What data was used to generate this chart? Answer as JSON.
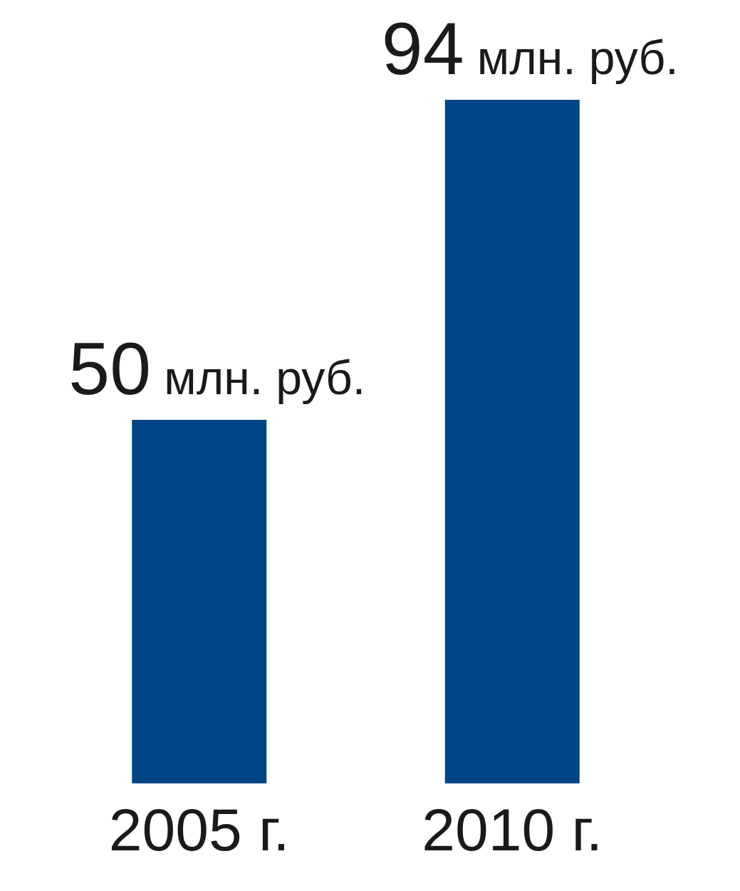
{
  "chart_data": {
    "type": "bar",
    "categories": [
      "2005 г.",
      "2010 г."
    ],
    "values": [
      50,
      94
    ],
    "color": "#004585",
    "value_labels": [
      "50 млн. руб.",
      "94 млн. руб."
    ],
    "grid": false,
    "legend": false,
    "tick_labels": "x"
  }
}
